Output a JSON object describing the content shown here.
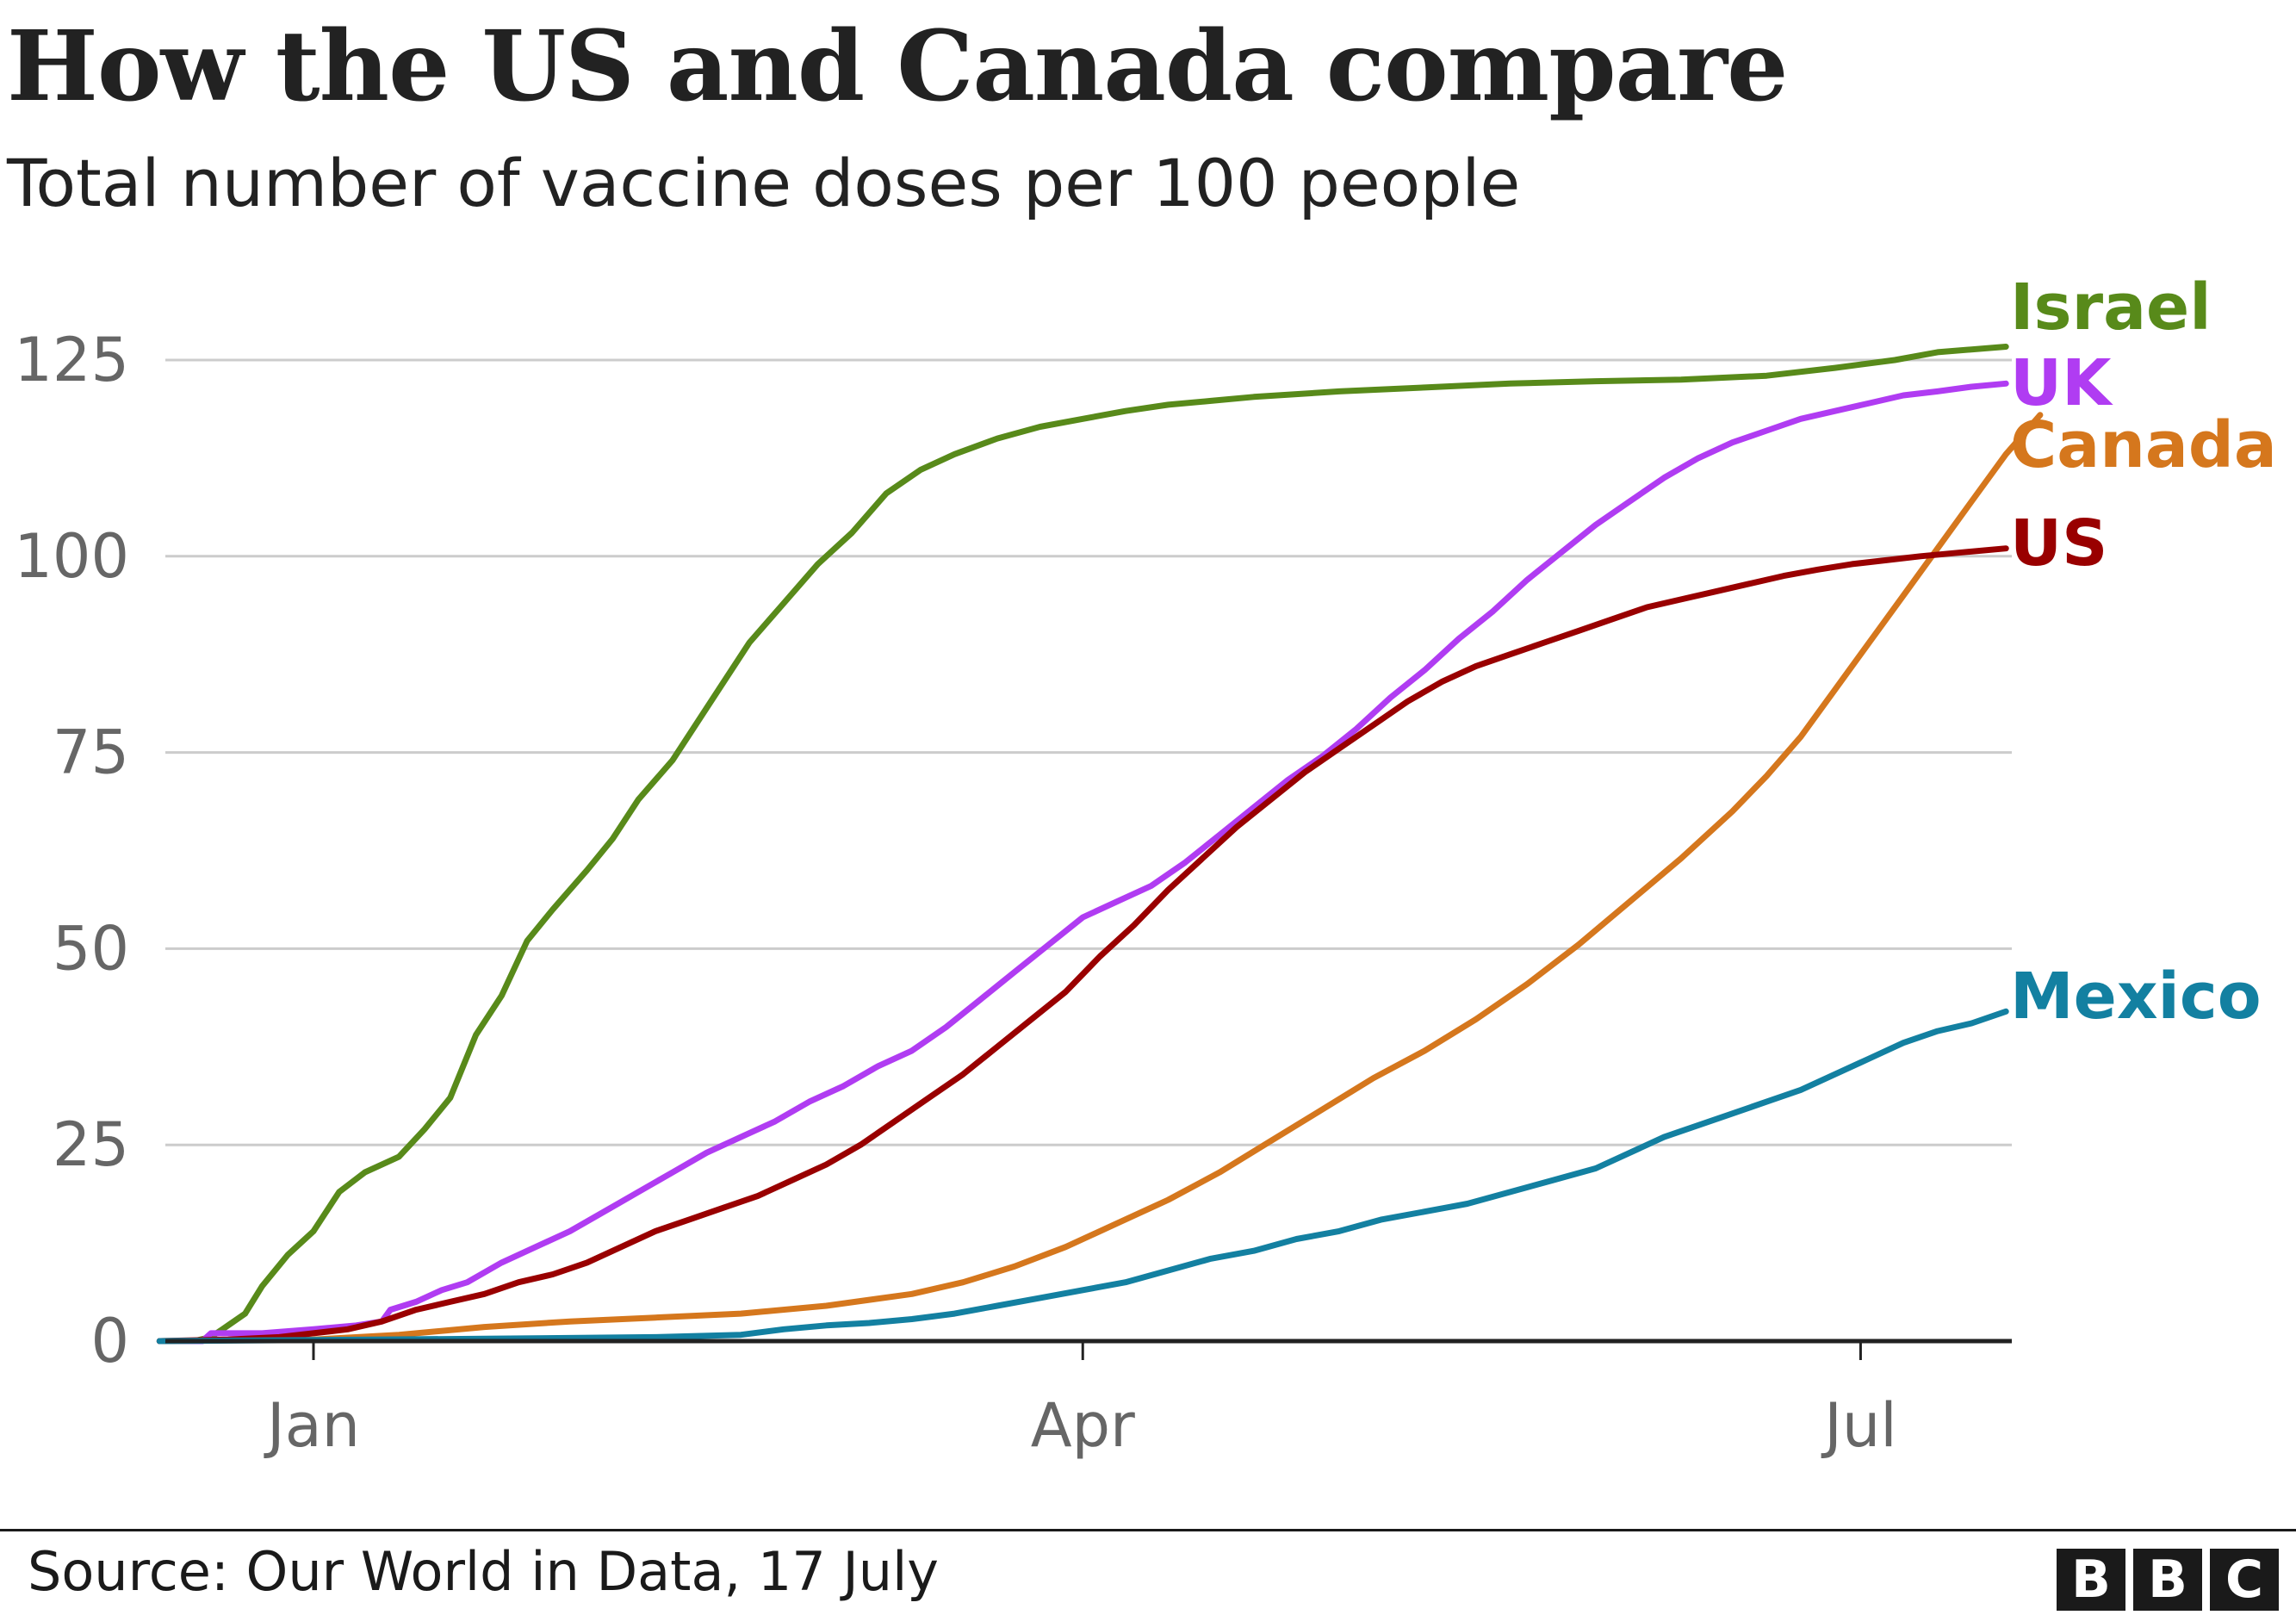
{
  "header": {
    "title": "How the US and Canada compare",
    "subtitle": "Total number of vaccine doses per 100 people"
  },
  "footer": {
    "source": "Source: Our World in Data, 17 July",
    "logo_letters": [
      "B",
      "B",
      "C"
    ]
  },
  "chart_data": {
    "type": "line",
    "title": "How the US and Canada compare",
    "subtitle": "Total number of vaccine doses per 100 people",
    "xlabel": "",
    "ylabel": "",
    "x_unit": "days since 1 Jan 2021 (negative = Dec 2020)",
    "xlim": [
      -18,
      198
    ],
    "ylim": [
      0,
      125
    ],
    "y_ticks": [
      0,
      25,
      50,
      75,
      100,
      125
    ],
    "x_ticks": [
      {
        "label": "Jan",
        "x": 0
      },
      {
        "label": "Apr",
        "x": 90
      },
      {
        "label": "Jul",
        "x": 181
      }
    ],
    "grid": "horizontal",
    "legend": "direct labels at line ends (right)",
    "series": [
      {
        "name": "Israel",
        "color": "#588a1a",
        "points": [
          [
            -18,
            0
          ],
          [
            -14,
            0
          ],
          [
            -12,
            0.5
          ],
          [
            -10,
            2
          ],
          [
            -8,
            3.5
          ],
          [
            -6,
            7
          ],
          [
            -3,
            11
          ],
          [
            0,
            14
          ],
          [
            3,
            19
          ],
          [
            6,
            21.5
          ],
          [
            10,
            23.5
          ],
          [
            13,
            27
          ],
          [
            16,
            31
          ],
          [
            19,
            39
          ],
          [
            22,
            44
          ],
          [
            25,
            51
          ],
          [
            28,
            55
          ],
          [
            32,
            60
          ],
          [
            35,
            64
          ],
          [
            38,
            69
          ],
          [
            42,
            74
          ],
          [
            45,
            79
          ],
          [
            48,
            84
          ],
          [
            51,
            89
          ],
          [
            55,
            94
          ],
          [
            59,
            99
          ],
          [
            63,
            103
          ],
          [
            67,
            108
          ],
          [
            71,
            111
          ],
          [
            75,
            113
          ],
          [
            80,
            115
          ],
          [
            85,
            116.5
          ],
          [
            90,
            117.5
          ],
          [
            95,
            118.5
          ],
          [
            100,
            119.3
          ],
          [
            105,
            119.8
          ],
          [
            110,
            120.3
          ],
          [
            120,
            121
          ],
          [
            130,
            121.5
          ],
          [
            140,
            122
          ],
          [
            150,
            122.3
          ],
          [
            160,
            122.5
          ],
          [
            170,
            123
          ],
          [
            178,
            124
          ],
          [
            185,
            125
          ],
          [
            190,
            126
          ],
          [
            198,
            126.7
          ]
        ]
      },
      {
        "name": "UK",
        "color": "#b03cf2",
        "points": [
          [
            -18,
            0
          ],
          [
            -13,
            0
          ],
          [
            -12,
            1
          ],
          [
            -10,
            1
          ],
          [
            -6,
            1
          ],
          [
            0,
            1.5
          ],
          [
            5,
            2
          ],
          [
            8,
            2.5
          ],
          [
            9,
            4
          ],
          [
            12,
            5
          ],
          [
            15,
            6.5
          ],
          [
            18,
            7.5
          ],
          [
            22,
            10
          ],
          [
            26,
            12
          ],
          [
            30,
            14
          ],
          [
            34,
            16.5
          ],
          [
            38,
            19
          ],
          [
            42,
            21.5
          ],
          [
            46,
            24
          ],
          [
            50,
            26
          ],
          [
            54,
            28
          ],
          [
            58,
            30.5
          ],
          [
            62,
            32.5
          ],
          [
            66,
            35
          ],
          [
            70,
            37
          ],
          [
            74,
            40
          ],
          [
            78,
            43.5
          ],
          [
            82,
            47
          ],
          [
            86,
            50.5
          ],
          [
            90,
            54
          ],
          [
            94,
            56
          ],
          [
            98,
            58
          ],
          [
            102,
            61
          ],
          [
            106,
            64.5
          ],
          [
            110,
            68
          ],
          [
            114,
            71.5
          ],
          [
            118,
            74.5
          ],
          [
            122,
            78
          ],
          [
            126,
            82
          ],
          [
            130,
            85.5
          ],
          [
            134,
            89.5
          ],
          [
            138,
            93
          ],
          [
            142,
            97
          ],
          [
            146,
            100.5
          ],
          [
            150,
            104
          ],
          [
            154,
            107
          ],
          [
            158,
            110
          ],
          [
            162,
            112.5
          ],
          [
            166,
            114.5
          ],
          [
            170,
            116
          ],
          [
            174,
            117.5
          ],
          [
            178,
            118.5
          ],
          [
            182,
            119.5
          ],
          [
            186,
            120.5
          ],
          [
            190,
            121
          ],
          [
            194,
            121.6
          ],
          [
            198,
            122
          ]
        ]
      },
      {
        "name": "Canada",
        "color": "#d5771d",
        "points": [
          [
            -18,
            0
          ],
          [
            0,
            0.2
          ],
          [
            10,
            0.8
          ],
          [
            20,
            1.8
          ],
          [
            30,
            2.5
          ],
          [
            40,
            3
          ],
          [
            50,
            3.5
          ],
          [
            60,
            4.5
          ],
          [
            70,
            6
          ],
          [
            76,
            7.5
          ],
          [
            82,
            9.5
          ],
          [
            88,
            12
          ],
          [
            94,
            15
          ],
          [
            100,
            18
          ],
          [
            106,
            21.5
          ],
          [
            112,
            25.5
          ],
          [
            118,
            29.5
          ],
          [
            124,
            33.5
          ],
          [
            130,
            37
          ],
          [
            136,
            41
          ],
          [
            142,
            45.5
          ],
          [
            148,
            50.5
          ],
          [
            154,
            56
          ],
          [
            160,
            61.5
          ],
          [
            166,
            67.5
          ],
          [
            170,
            72
          ],
          [
            174,
            77
          ],
          [
            178,
            83
          ],
          [
            182,
            89
          ],
          [
            186,
            95
          ],
          [
            190,
            101
          ],
          [
            194,
            107
          ],
          [
            198,
            113
          ],
          [
            202,
            118
          ]
        ]
      },
      {
        "name": "US",
        "color": "#990000",
        "points": [
          [
            -18,
            0
          ],
          [
            -10,
            0.2
          ],
          [
            -4,
            0.5
          ],
          [
            0,
            1
          ],
          [
            4,
            1.5
          ],
          [
            8,
            2.5
          ],
          [
            12,
            4
          ],
          [
            16,
            5
          ],
          [
            20,
            6
          ],
          [
            24,
            7.5
          ],
          [
            28,
            8.5
          ],
          [
            32,
            10
          ],
          [
            36,
            12
          ],
          [
            40,
            14
          ],
          [
            44,
            15.5
          ],
          [
            48,
            17
          ],
          [
            52,
            18.5
          ],
          [
            56,
            20.5
          ],
          [
            60,
            22.5
          ],
          [
            64,
            25
          ],
          [
            68,
            28
          ],
          [
            72,
            31
          ],
          [
            76,
            34
          ],
          [
            80,
            37.5
          ],
          [
            84,
            41
          ],
          [
            88,
            44.5
          ],
          [
            92,
            49
          ],
          [
            96,
            53
          ],
          [
            100,
            57.5
          ],
          [
            104,
            61.5
          ],
          [
            108,
            65.5
          ],
          [
            112,
            69
          ],
          [
            116,
            72.5
          ],
          [
            120,
            75.5
          ],
          [
            124,
            78.5
          ],
          [
            128,
            81.5
          ],
          [
            132,
            84
          ],
          [
            136,
            86
          ],
          [
            140,
            87.5
          ],
          [
            144,
            89
          ],
          [
            148,
            90.5
          ],
          [
            152,
            92
          ],
          [
            156,
            93.5
          ],
          [
            160,
            94.5
          ],
          [
            164,
            95.5
          ],
          [
            168,
            96.5
          ],
          [
            172,
            97.5
          ],
          [
            176,
            98.3
          ],
          [
            180,
            99
          ],
          [
            184,
            99.5
          ],
          [
            188,
            100
          ],
          [
            193,
            100.5
          ],
          [
            198,
            101
          ]
        ]
      },
      {
        "name": "Mexico",
        "color": "#1380a1",
        "points": [
          [
            -18,
            0
          ],
          [
            20,
            0.3
          ],
          [
            40,
            0.5
          ],
          [
            50,
            0.8
          ],
          [
            55,
            1.5
          ],
          [
            60,
            2
          ],
          [
            65,
            2.3
          ],
          [
            70,
            2.8
          ],
          [
            75,
            3.5
          ],
          [
            80,
            4.5
          ],
          [
            85,
            5.5
          ],
          [
            90,
            6.5
          ],
          [
            95,
            7.5
          ],
          [
            100,
            9
          ],
          [
            105,
            10.5
          ],
          [
            110,
            11.5
          ],
          [
            115,
            13
          ],
          [
            120,
            14
          ],
          [
            125,
            15.5
          ],
          [
            130,
            16.5
          ],
          [
            135,
            17.5
          ],
          [
            140,
            19
          ],
          [
            145,
            20.5
          ],
          [
            150,
            22
          ],
          [
            154,
            24
          ],
          [
            158,
            26
          ],
          [
            162,
            27.5
          ],
          [
            166,
            29
          ],
          [
            170,
            30.5
          ],
          [
            174,
            32
          ],
          [
            178,
            34
          ],
          [
            182,
            36
          ],
          [
            186,
            38
          ],
          [
            190,
            39.5
          ],
          [
            194,
            40.5
          ],
          [
            198,
            42
          ]
        ]
      }
    ]
  }
}
